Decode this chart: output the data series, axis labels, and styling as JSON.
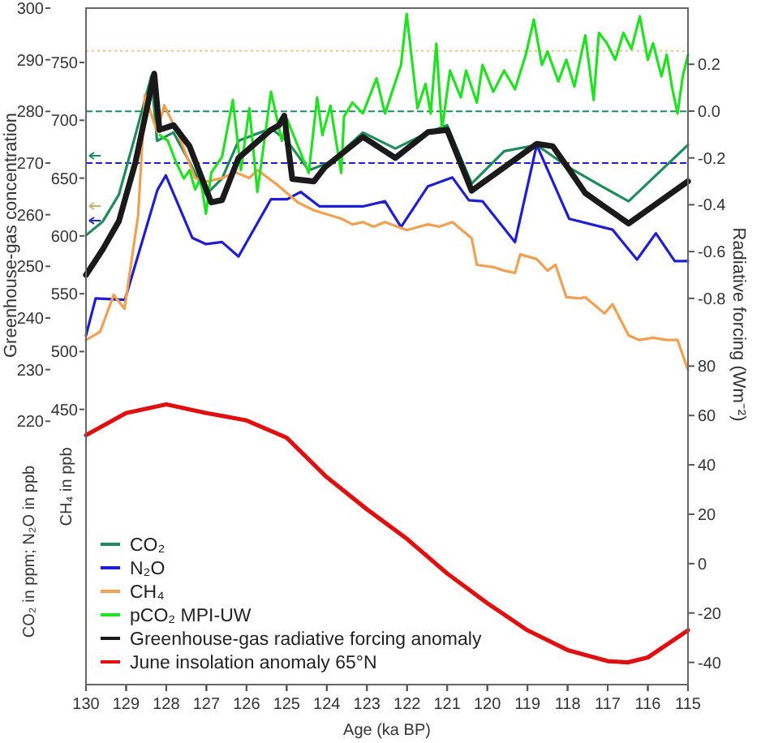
{
  "chart_data": [
    {
      "type": "line",
      "ylabel": "CO₂ in ppm; N₂O in ppb",
      "y2label": "CH₄ in ppb",
      "y3label": "Radiative forcing (Wm⁻²)",
      "annotations": [
        "Greenhouse-gas concentration"
      ],
      "xlim": [
        130,
        115
      ],
      "xticks": [
        130,
        129,
        128,
        127,
        126,
        125,
        124,
        123,
        122,
        121,
        120,
        119,
        118,
        117,
        116,
        115
      ],
      "tick_labels": "y",
      "ylim": [
        169,
        300
      ],
      "yticks": [
        220,
        230,
        240,
        250,
        260,
        270,
        280,
        290,
        300
      ],
      "y2lim": [
        212,
        797
      ],
      "y2ticks": [
        450,
        500,
        550,
        600,
        650,
        700,
        750
      ],
      "y3lim": [
        -2.45,
        0.44
      ],
      "y3ticks": [
        {
          "value": -0.8,
          "label": "-0.8"
        },
        {
          "value": -0.6,
          "label": "-0.6"
        },
        {
          "value": -0.4,
          "label": "-0.4"
        },
        {
          "value": -0.2,
          "label": "-0.2"
        },
        {
          "value": 0,
          "label": "0.0"
        },
        {
          "value": 0.2,
          "label": "0.2"
        }
      ],
      "legend": "bottom left",
      "ref_lines": [
        {
          "axis": "y",
          "value": 280,
          "color": "#1e8c5a",
          "line_style": "dashed"
        },
        {
          "axis": "y",
          "value": 270,
          "color": "#2020d0",
          "line_style": "dashed"
        },
        {
          "axis": "y2",
          "value": 760,
          "color": "#e8c890",
          "line_style": "dotted"
        }
      ],
      "series": [
        {
          "name": "CO₂",
          "color": "#1e8c5a",
          "x": [
            130,
            129.58,
            129.18,
            128.77,
            128.37,
            128.23,
            127.82,
            127.42,
            127.01,
            126.61,
            126.2,
            125.39,
            124.99,
            124.45,
            123.91,
            123.1,
            122.29,
            121.48,
            121,
            120.39,
            119.58,
            118.77,
            117.96,
            117.15,
            116.48,
            115
          ],
          "values": [
            256,
            258.7,
            263.9,
            275.4,
            286.9,
            274.3,
            275.9,
            270.2,
            263.9,
            267,
            274.3,
            276.7,
            274.3,
            268.6,
            270.2,
            275.9,
            272.8,
            275.9,
            277.3,
            266,
            272.3,
            273.5,
            269.1,
            265.5,
            262.6,
            273.5
          ]
        },
        {
          "name": "N₂O",
          "color": "#1f1fd0",
          "x": [
            130,
            129.76,
            129.03,
            128.22,
            128.01,
            127.35,
            127.01,
            126.61,
            126.2,
            125.39,
            124.99,
            124.65,
            124.18,
            123.1,
            122.55,
            122.15,
            121.48,
            120.87,
            120.46,
            120.12,
            119.31,
            118.77,
            117.96,
            116.88,
            116.27,
            115.8,
            115.33,
            115
          ],
          "values": [
            236.6,
            243.8,
            243.5,
            264.8,
            267.6,
            255.5,
            254.3,
            254.7,
            251.9,
            263,
            263,
            264.4,
            261.6,
            261.6,
            262.6,
            257.6,
            265.5,
            267.2,
            262.8,
            262.6,
            254.7,
            273.5,
            259.2,
            257.1,
            251.3,
            256.4,
            251,
            251
          ]
        },
        {
          "name": "CH₄",
          "color": "#f0a050",
          "axis": "y2",
          "x": [
            130,
            129.65,
            129.31,
            129.04,
            128.7,
            128.53,
            128.23,
            128.05,
            127.69,
            127.28,
            127.01,
            126.61,
            126.27,
            125.93,
            125.73,
            125.26,
            124.72,
            124.31,
            123.64,
            123.36,
            123.1,
            122.83,
            122.55,
            122.01,
            121.48,
            121.2,
            120.87,
            120.39,
            120.26,
            119.85,
            119.58,
            119.31,
            119.18,
            118.77,
            118.5,
            118.3,
            118.03,
            117.69,
            117.56,
            117.08,
            116.88,
            116.48,
            116.21,
            115.87,
            115.53,
            115.26,
            115
          ],
          "values": [
            510,
            517,
            549,
            537,
            618,
            722,
            690,
            713,
            687,
            650,
            647,
            650,
            655,
            650,
            657,
            645,
            629,
            622,
            615,
            610,
            612,
            608,
            612,
            605,
            610,
            608,
            612,
            598,
            575,
            573,
            570,
            568,
            584,
            580,
            570,
            575,
            547,
            546,
            547,
            533,
            541,
            514,
            510,
            512,
            510,
            510,
            484
          ]
        },
        {
          "name": "pCO₂ MPI-UW",
          "color": "#22e022",
          "x": [
            128.16,
            127.96,
            127.76,
            127.56,
            127.42,
            127.28,
            127.15,
            127.01,
            126.88,
            126.61,
            126.34,
            126.14,
            125.93,
            125.73,
            125.39,
            125.12,
            124.99,
            124.72,
            124.45,
            124.24,
            124.11,
            123.91,
            123.64,
            123.57,
            123.36,
            123.1,
            122.76,
            122.55,
            122.15,
            122.01,
            121.74,
            121.54,
            121.41,
            121.27,
            121.13,
            120.93,
            120.66,
            120.53,
            120.26,
            120.12,
            119.85,
            119.58,
            119.31,
            119.04,
            118.84,
            118.64,
            118.5,
            118.23,
            118.03,
            117.83,
            117.56,
            117.35,
            117.22,
            117.02,
            116.81,
            116.61,
            116.41,
            116.2,
            116,
            115.87,
            115.66,
            115.53,
            115.4,
            115.26,
            115.13,
            115
          ],
          "values": [
            275.4,
            274.3,
            270.2,
            267,
            268.6,
            264.9,
            267,
            260.2,
            268.1,
            271.2,
            282.2,
            268.6,
            280.6,
            264.4,
            283.8,
            274.3,
            278.5,
            273.3,
            268.1,
            282.7,
            275.4,
            281.1,
            268.1,
            279,
            281.7,
            279.6,
            286.4,
            279.6,
            289,
            298.9,
            280.6,
            285.3,
            279.6,
            293.1,
            276.4,
            287.9,
            282.7,
            287.9,
            281.7,
            289,
            283.8,
            287.9,
            284.3,
            291,
            297.8,
            289,
            291.6,
            285.8,
            290,
            284.8,
            294.7,
            282.2,
            295.2,
            293.2,
            290,
            295.2,
            292.1,
            298.4,
            290,
            293.2,
            286.8,
            291,
            284.8,
            279.6,
            286.8,
            291
          ]
        },
        {
          "name": "Greenhouse-gas radiative forcing anomaly",
          "color": "#1a1a1a",
          "axis": "y3",
          "x": [
            130,
            129.58,
            129.18,
            128.77,
            128.3,
            128.17,
            127.82,
            127.42,
            126.88,
            126.61,
            126.2,
            125.39,
            125.19,
            125.06,
            124.86,
            124.32,
            124.05,
            123.1,
            122.29,
            121.48,
            121,
            120.39,
            119.58,
            118.77,
            118.37,
            117.96,
            117.56,
            117.15,
            116.48,
            115
          ],
          "values": [
            -0.7,
            -0.59,
            -0.47,
            -0.22,
            0.16,
            -0.08,
            -0.06,
            -0.15,
            -0.39,
            -0.38,
            -0.2,
            -0.08,
            -0.06,
            -0.02,
            -0.29,
            -0.3,
            -0.24,
            -0.11,
            -0.2,
            -0.09,
            -0.08,
            -0.34,
            -0.24,
            -0.14,
            -0.15,
            -0.25,
            -0.35,
            -0.4,
            -0.48,
            -0.3
          ]
        }
      ]
    },
    {
      "type": "line",
      "xlabel": "Age (ka BP)",
      "legend": "bottom left",
      "xlim": [
        130,
        115
      ],
      "xticks": [
        130,
        129,
        128,
        127,
        126,
        125,
        124,
        123,
        122,
        121,
        120,
        119,
        118,
        117,
        116,
        115
      ],
      "ylim": [
        -49,
        225
      ],
      "yticks": [
        -40,
        -20,
        0,
        20,
        40,
        60,
        80
      ],
      "series": [
        {
          "name": "June insolation anomaly 65°N",
          "color": "#e01010",
          "x": [
            130,
            129,
            128,
            127,
            126,
            125,
            124,
            123,
            122,
            121,
            120,
            119,
            118,
            117,
            116.5,
            116,
            115
          ],
          "values": [
            52,
            61,
            64.5,
            61,
            58,
            51,
            35,
            22,
            10,
            -4,
            -16,
            -27,
            -35,
            -39.5,
            -40,
            -38,
            -27
          ]
        }
      ]
    }
  ]
}
